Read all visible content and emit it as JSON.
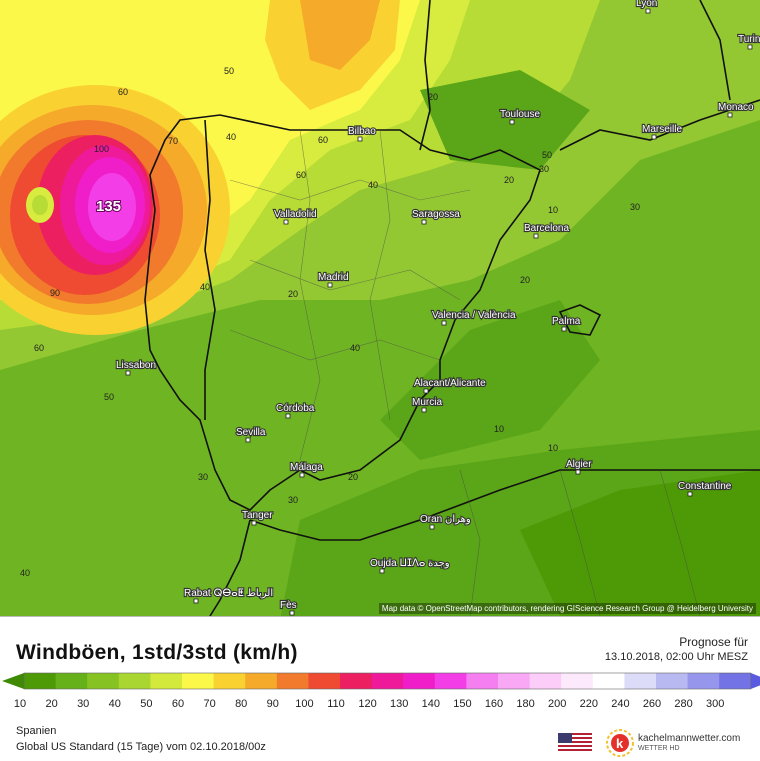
{
  "map": {
    "cities": [
      {
        "name": "Lyon",
        "id": "lyon"
      },
      {
        "name": "Turin",
        "id": "turin"
      },
      {
        "name": "Toulouse",
        "id": "toulouse"
      },
      {
        "name": "Monaco",
        "id": "monaco"
      },
      {
        "name": "Marseille",
        "id": "marseille"
      },
      {
        "name": "Bilbao",
        "id": "bilbao"
      },
      {
        "name": "Valladolid",
        "id": "valladolid"
      },
      {
        "name": "Saragossa",
        "id": "saragossa"
      },
      {
        "name": "Barcelona",
        "id": "barcelona"
      },
      {
        "name": "Madrid",
        "id": "madrid"
      },
      {
        "name": "Valencia / València",
        "id": "valencia"
      },
      {
        "name": "Palma",
        "id": "palma"
      },
      {
        "name": "Lissabon",
        "id": "lissabon"
      },
      {
        "name": "Alacant/Alicante",
        "id": "alicante"
      },
      {
        "name": "Córdoba",
        "id": "cordoba"
      },
      {
        "name": "Murcia",
        "id": "murcia"
      },
      {
        "name": "Sevilla",
        "id": "sevilla"
      },
      {
        "name": "Málaga",
        "id": "malaga"
      },
      {
        "name": "Algier",
        "id": "algier"
      },
      {
        "name": "Constantine",
        "id": "constantine"
      },
      {
        "name": "Tanger",
        "id": "tanger"
      },
      {
        "name": "Oran وهران",
        "id": "oran"
      },
      {
        "name": "Oujda ⵡⵊⴷⴰ وجدة",
        "id": "oujda"
      },
      {
        "name": "Rabat ⵕⴱⴰⵟ الرباط",
        "id": "rabat"
      },
      {
        "name": "Fès",
        "id": "fes"
      }
    ],
    "contour_labels": [
      "135",
      "100",
      "90",
      "70",
      "60",
      "60",
      "50",
      "50",
      "40",
      "40",
      "40",
      "40",
      "30",
      "30",
      "30",
      "20",
      "20",
      "20",
      "20",
      "10",
      "10",
      "10",
      "60",
      "60",
      "50",
      "40",
      "30",
      "20"
    ],
    "max_label": "135",
    "attribution": "Map data © OpenStreetMap contributors, rendering GIScience Research Group @ Heidelberg University"
  },
  "legend": {
    "title": "Windböen, 1std/3std (km/h)",
    "forecast_label": "Prognose für",
    "forecast_date": "13.10.2018, 02:00 Uhr MESZ",
    "region": "Spanien",
    "model": "Global US Standard (15 Tage) vom 02.10.2018/00z",
    "brand": "kachelmannwetter.com",
    "brand_sub": "WETTER HD",
    "scale": [
      {
        "value": "10",
        "color": "#4e9a06"
      },
      {
        "value": "20",
        "color": "#66b01a"
      },
      {
        "value": "30",
        "color": "#86c322"
      },
      {
        "value": "40",
        "color": "#a9d631"
      },
      {
        "value": "50",
        "color": "#d3ea3c"
      },
      {
        "value": "60",
        "color": "#fbf84a"
      },
      {
        "value": "70",
        "color": "#f9d232"
      },
      {
        "value": "80",
        "color": "#f6aa2a"
      },
      {
        "value": "90",
        "color": "#f27a2c"
      },
      {
        "value": "100",
        "color": "#ef4a32"
      },
      {
        "value": "110",
        "color": "#ec2060"
      },
      {
        "value": "120",
        "color": "#ee1a9a"
      },
      {
        "value": "130",
        "color": "#f01ec8"
      },
      {
        "value": "140",
        "color": "#f33ee8"
      },
      {
        "value": "150",
        "color": "#f57ef0"
      },
      {
        "value": "160",
        "color": "#f8a8f4"
      },
      {
        "value": "180",
        "color": "#fbcdf8"
      },
      {
        "value": "200",
        "color": "#fde9fc"
      },
      {
        "value": "220",
        "color": "#ffffff"
      },
      {
        "value": "240",
        "color": "#dcdcf8"
      },
      {
        "value": "260",
        "color": "#b9b9f2"
      },
      {
        "value": "280",
        "color": "#9696ec"
      },
      {
        "value": "300",
        "color": "#7373e6"
      }
    ],
    "under_color": "#3f8a05",
    "over_color": "#5a5ae0"
  }
}
